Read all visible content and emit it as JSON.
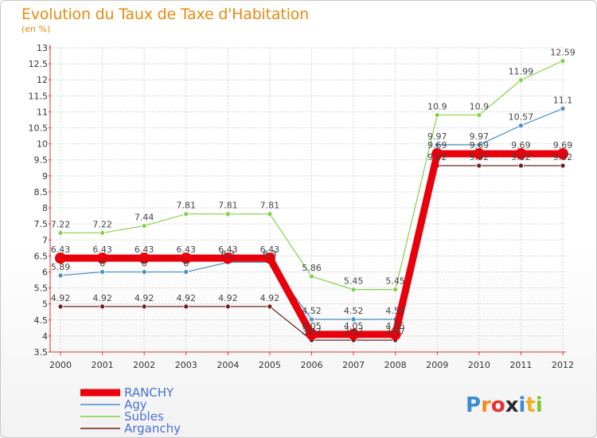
{
  "chart_data": {
    "type": "line",
    "title": "Evolution du Taux de Taxe d'Habitation",
    "subtitle": "(en %)",
    "x": [
      "2000",
      "2001",
      "2002",
      "2003",
      "2004",
      "2005",
      "2006",
      "2007",
      "2008",
      "2009",
      "2010",
      "2011",
      "2012"
    ],
    "ylim": [
      3.5,
      13
    ],
    "yticks": [
      "3.5",
      "4",
      "4.5",
      "5",
      "5.5",
      "6",
      "6.5",
      "7",
      "7.5",
      "8",
      "8.5",
      "9",
      "9.5",
      "10",
      "10.5",
      "11",
      "11.5",
      "12",
      "12.5",
      "13"
    ],
    "grid": true,
    "legend_position": "bottom-left",
    "series": [
      {
        "name": "RANCHY",
        "color": "#e8000b",
        "values": [
          6.43,
          6.43,
          6.43,
          6.43,
          6.43,
          6.43,
          4.05,
          4.05,
          4.05,
          9.69,
          9.69,
          9.69,
          9.69
        ],
        "labels": [
          "6.43",
          "6.43",
          "6.43",
          "6.43",
          "6.43",
          "6.43",
          "4.05",
          "4.05",
          "4.05",
          "9.69",
          "9.69",
          "9.69",
          "9.69"
        ]
      },
      {
        "name": "Agy",
        "color": "#4a90c8",
        "values": [
          5.89,
          6,
          6,
          6,
          6.3,
          6.3,
          4.52,
          4.52,
          4.52,
          9.97,
          9.97,
          10.57,
          11.1
        ],
        "labels": [
          "5.89",
          "6",
          "6",
          "6",
          "6.3",
          "6.3",
          "4.52",
          "4.52",
          "4.52",
          "9.97",
          "9.97",
          "10.57",
          "11.1"
        ]
      },
      {
        "name": "Subles",
        "color": "#86d048",
        "values": [
          7.22,
          7.22,
          7.44,
          7.81,
          7.81,
          7.81,
          5.86,
          5.45,
          5.45,
          10.9,
          10.9,
          11.99,
          12.59
        ],
        "labels": [
          "7.22",
          "7.22",
          "7.44",
          "7.81",
          "7.81",
          "7.81",
          "5.86",
          "5.45",
          "5.45",
          "10.9",
          "10.9",
          "11.99",
          "12.59"
        ]
      },
      {
        "name": "Arganchy",
        "color": "#6e1e1e",
        "values": [
          4.92,
          4.92,
          4.92,
          4.92,
          4.92,
          4.92,
          3.87,
          3.87,
          3.87,
          9.32,
          9.32,
          9.32,
          9.32
        ],
        "labels": [
          "4.92",
          "4.92",
          "4.92",
          "4.92",
          "4.92",
          "4.92",
          "3.87",
          "3.87",
          "3.87",
          "9.32",
          "9.32",
          "9.32",
          "9.32"
        ]
      }
    ]
  },
  "brand": {
    "letters": [
      "P",
      "r",
      "o",
      "x",
      "i",
      "t",
      "i"
    ],
    "colors": [
      "#3a8ad8",
      "#f08c1a",
      "#e83030",
      "#2a2a2a",
      "#3a8ad8",
      "#f0b020",
      "#7ac830"
    ]
  }
}
